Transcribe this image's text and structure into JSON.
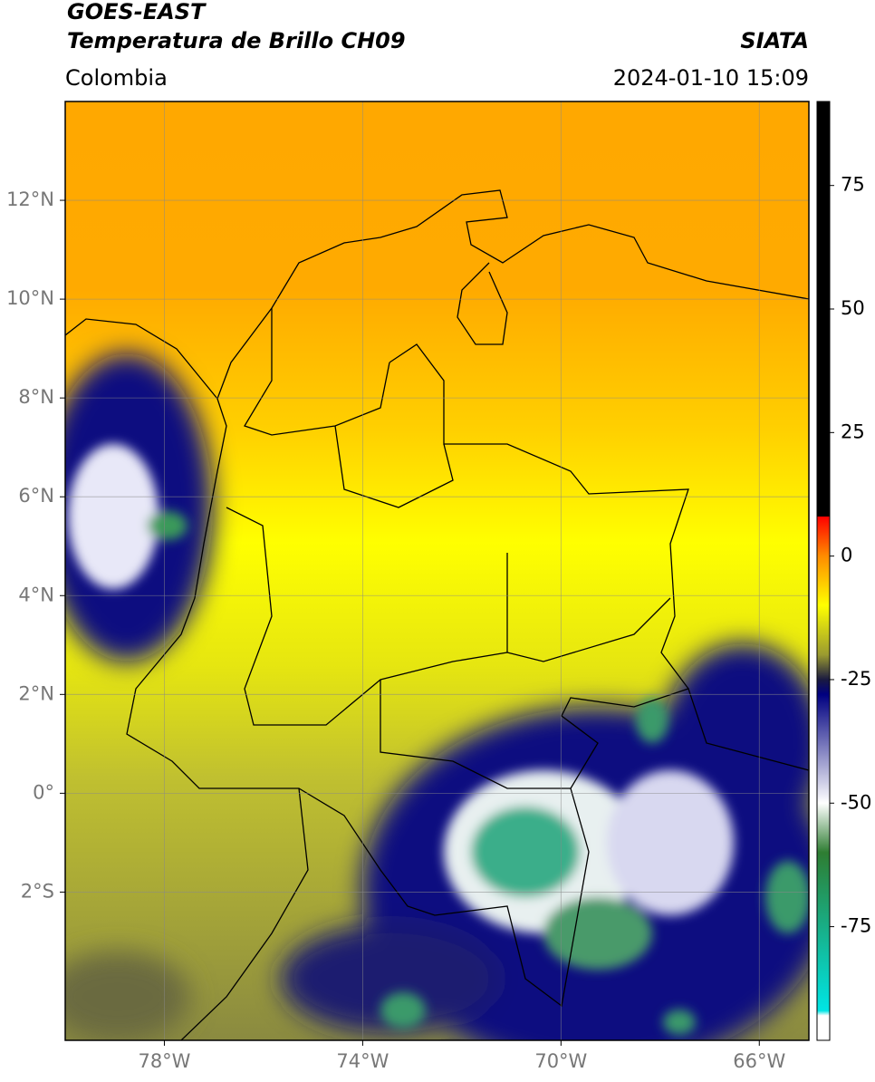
{
  "header": {
    "title": "GOES-EAST",
    "subtitle": "Temperatura de Brillo CH09",
    "source": "SIATA",
    "region": "Colombia",
    "datetime": "2024-01-10 15:09"
  },
  "map": {
    "xlim": [
      -80,
      -65
    ],
    "ylim": [
      -5,
      14
    ],
    "grid": true,
    "xticks": [
      {
        "value": -78,
        "label": "78°W"
      },
      {
        "value": -74,
        "label": "74°W"
      },
      {
        "value": -70,
        "label": "70°W"
      },
      {
        "value": -66,
        "label": "66°W"
      }
    ],
    "yticks": [
      {
        "value": 12,
        "label": "12°N"
      },
      {
        "value": 10,
        "label": "10°N"
      },
      {
        "value": 8,
        "label": "8°N"
      },
      {
        "value": 6,
        "label": "6°N"
      },
      {
        "value": 4,
        "label": "4°N"
      },
      {
        "value": 2,
        "label": "2°N"
      },
      {
        "value": 0,
        "label": "0°"
      },
      {
        "value": -2,
        "label": "2°S"
      }
    ]
  },
  "colorbar": {
    "lim": [
      -98,
      92
    ],
    "ticks": [
      75,
      50,
      25,
      0,
      -25,
      -50,
      -75
    ],
    "colormap": [
      {
        "value": 92,
        "color": "#000000"
      },
      {
        "value": 8,
        "color": "#000000"
      },
      {
        "value": 8,
        "color": "#ff0000"
      },
      {
        "value": 0,
        "color": "#ff8c00"
      },
      {
        "value": -10,
        "color": "#ffff00"
      },
      {
        "value": -20,
        "color": "#9a9a30"
      },
      {
        "value": -25,
        "color": "#1a1a40"
      },
      {
        "value": -28,
        "color": "#000080"
      },
      {
        "value": -50,
        "color": "#ffffff"
      },
      {
        "value": -60,
        "color": "#2e7d32"
      },
      {
        "value": -92,
        "color": "#00e5e5"
      },
      {
        "value": -93,
        "color": "#ffffff"
      },
      {
        "value": -98,
        "color": "#ffffff"
      }
    ]
  }
}
